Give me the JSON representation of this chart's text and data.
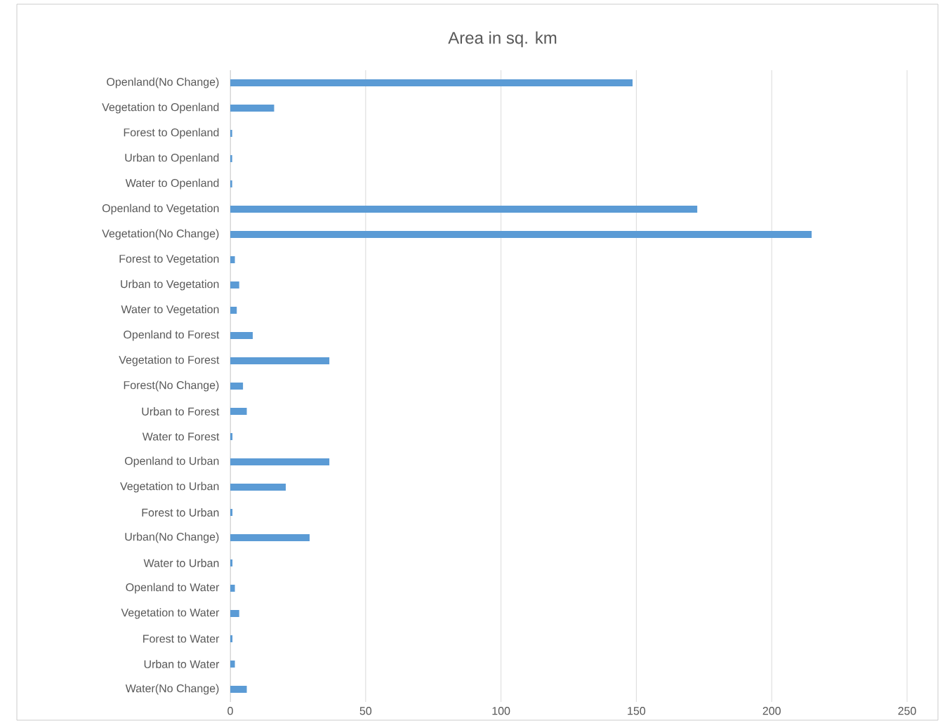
{
  "chart_data": {
    "type": "bar",
    "orientation": "horizontal",
    "title": "Area in sq. km",
    "categories": [
      "Openland(No Change)",
      "Vegetation to Openland",
      "Forest to Openland",
      "Urban to Openland",
      "Water to Openland",
      "Openland to Vegetation",
      "Vegetation(No Change)",
      "Forest to Vegetation",
      "Urban to Vegetation",
      "Water to Vegetation",
      "Openland to Forest",
      "Vegetation to Forest",
      "Forest(No Change)",
      "Urban to Forest",
      "Water to Forest",
      "Openland to Urban",
      "Vegetation to Urban",
      "Forest to Urban",
      "Urban(No Change)",
      "Water to Urban",
      "Openland to Water",
      "Vegetation to Water",
      "Forest to Water",
      "Urban to Water",
      "Water(No Change)"
    ],
    "values": [
      148.6,
      16.2,
      0.7,
      0.7,
      0.7,
      172.5,
      214.8,
      1.7,
      3.3,
      2.4,
      8.3,
      36.6,
      4.7,
      6.1,
      0.8,
      36.6,
      20.5,
      0.8,
      29.3,
      0.8,
      1.7,
      3.3,
      0.8,
      1.7,
      6.1
    ],
    "color": "#5b9bd5",
    "xlim": [
      0,
      250
    ],
    "xticks": [
      0,
      50,
      100,
      150,
      200,
      250
    ],
    "grid": "x"
  }
}
